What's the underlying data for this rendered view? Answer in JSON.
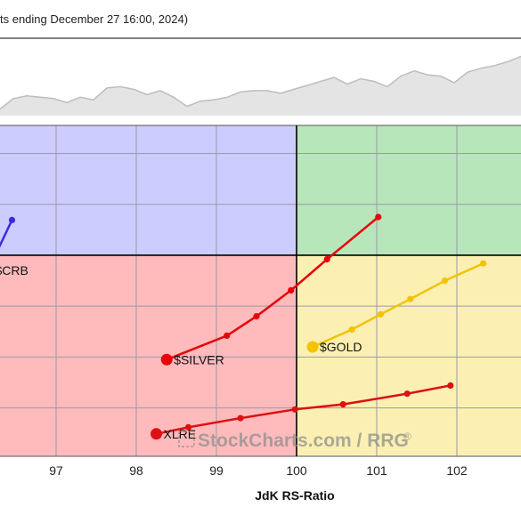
{
  "header": {
    "caption": "ts ending December 27 16:00, 2024)"
  },
  "watermark": {
    "text": "StockCharts.com / RRG",
    "reg_mark": "®"
  },
  "colors": {
    "quadrant_improving": "#ccccff",
    "quadrant_leading": "#b8e6bb",
    "quadrant_lagging": "#ffbbbb",
    "quadrant_weakening": "#fbf0b2",
    "grid": "#9a9aaa",
    "axis_center": "#000000",
    "mini_fill": "#e4e4e4",
    "mini_line": "#bdbdbd",
    "crb": "#3d2bd9",
    "gold": "#f2c300",
    "silver": "#e8000b",
    "xlre": "#dd1111"
  },
  "chart_data": [
    {
      "type": "line",
      "name": "benchmark-mini-chart",
      "description_level": "relative",
      "x": [
        0,
        1,
        2,
        3,
        4,
        5,
        6,
        7,
        8,
        9,
        10,
        11,
        12,
        13,
        14,
        15,
        16,
        17,
        18,
        19,
        20,
        21,
        22,
        23,
        24,
        25,
        26,
        27,
        28,
        29,
        30,
        31,
        32,
        33,
        34,
        35,
        36,
        37,
        38,
        39
      ],
      "values": [
        5,
        13,
        15,
        14,
        13,
        10,
        14,
        12,
        21,
        22,
        20,
        16,
        19,
        14,
        7,
        11,
        12,
        14,
        18,
        19,
        19,
        17,
        20,
        23,
        26,
        29,
        24,
        28,
        26,
        22,
        30,
        34,
        31,
        30,
        25,
        33,
        36,
        38,
        41,
        45
      ],
      "ylim": [
        0,
        50
      ]
    },
    {
      "type": "scatter",
      "title": "",
      "xlabel": "JdK RS-Ratio",
      "ylabel": "",
      "xlim": [
        96.3,
        102.8
      ],
      "ylim": [
        96.05,
        102.55
      ],
      "x_ticks": [
        97,
        98,
        99,
        100,
        101,
        102
      ],
      "grid": true,
      "center": [
        100,
        100
      ],
      "series": [
        {
          "name": "$CRB",
          "color_key": "crb",
          "points": [
            [
              96.15,
              99.7
            ],
            [
              96.45,
              100.69
            ]
          ]
        },
        {
          "name": "$SILVER",
          "color_key": "silver",
          "points": [
            [
              98.38,
              97.95
            ],
            [
              99.13,
              98.42
            ],
            [
              99.5,
              98.8
            ],
            [
              99.93,
              99.31
            ],
            [
              100.38,
              99.92
            ],
            [
              101.02,
              100.75
            ]
          ]
        },
        {
          "name": "$GOLD",
          "color_key": "gold",
          "points": [
            [
              100.2,
              98.2
            ],
            [
              100.69,
              98.54
            ],
            [
              101.05,
              98.84
            ],
            [
              101.42,
              99.14
            ],
            [
              101.85,
              99.5
            ],
            [
              102.33,
              99.84
            ]
          ]
        },
        {
          "name": "XLRE",
          "color_key": "xlre",
          "points": [
            [
              98.25,
              96.49
            ],
            [
              98.65,
              96.62
            ],
            [
              99.3,
              96.8
            ],
            [
              99.98,
              96.97
            ],
            [
              100.58,
              97.07
            ],
            [
              101.38,
              97.28
            ],
            [
              101.92,
              97.44
            ]
          ]
        }
      ]
    }
  ]
}
